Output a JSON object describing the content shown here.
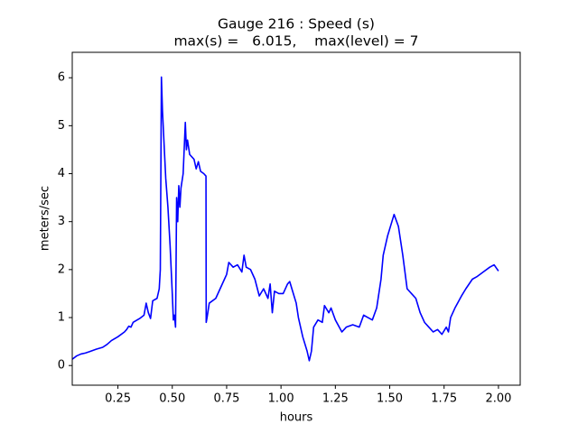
{
  "chart_data": {
    "type": "line",
    "title": [
      "Gauge 216 : Speed (s)",
      "max(s) =   6.015,    max(level) = 7"
    ],
    "xlabel": "hours",
    "ylabel": "meters/sec",
    "xlim": [
      0.04,
      2.1
    ],
    "ylim": [
      -0.41,
      6.53
    ],
    "xticks": [
      0.25,
      {
        "value": 0.5,
        "label": "0.50"
      },
      0.75,
      {
        "value": 1,
        "label": "1.00"
      },
      1.25,
      {
        "value": 1.5,
        "label": "1.50"
      },
      1.75,
      {
        "value": 2,
        "label": "2.00"
      }
    ],
    "yticks": [
      0,
      1,
      2,
      3,
      4,
      5,
      6
    ],
    "grid": false,
    "series": [
      {
        "color": "#0000ff",
        "x": [
          0.04,
          0.06,
          0.08,
          0.1,
          0.12,
          0.15,
          0.18,
          0.2,
          0.22,
          0.25,
          0.28,
          0.29,
          0.3,
          0.31,
          0.32,
          0.35,
          0.37,
          0.38,
          0.39,
          0.4,
          0.41,
          0.43,
          0.44,
          0.445,
          0.45,
          0.455,
          0.47,
          0.48,
          0.49,
          0.5,
          0.505,
          0.51,
          0.515,
          0.52,
          0.525,
          0.53,
          0.535,
          0.54,
          0.55,
          0.56,
          0.565,
          0.57,
          0.58,
          0.6,
          0.61,
          0.62,
          0.63,
          0.645,
          0.655,
          0.656,
          0.66,
          0.67,
          0.7,
          0.72,
          0.74,
          0.75,
          0.76,
          0.78,
          0.8,
          0.82,
          0.83,
          0.84,
          0.86,
          0.88,
          0.9,
          0.92,
          0.94,
          0.95,
          0.96,
          0.97,
          0.99,
          1.01,
          1.03,
          1.04,
          1.05,
          1.07,
          1.08,
          1.1,
          1.12,
          1.13,
          1.14,
          1.15,
          1.17,
          1.19,
          1.2,
          1.22,
          1.23,
          1.25,
          1.28,
          1.3,
          1.33,
          1.36,
          1.38,
          1.4,
          1.42,
          1.44,
          1.46,
          1.47,
          1.49,
          1.51,
          1.52,
          1.54,
          1.56,
          1.58,
          1.6,
          1.62,
          1.64,
          1.66,
          1.68,
          1.7,
          1.72,
          1.74,
          1.76,
          1.77,
          1.78,
          1.8,
          1.83,
          1.85,
          1.88,
          1.9,
          1.93,
          1.96,
          1.98,
          2.0
        ],
        "values": [
          0.13,
          0.2,
          0.24,
          0.26,
          0.29,
          0.34,
          0.38,
          0.44,
          0.52,
          0.6,
          0.7,
          0.75,
          0.82,
          0.8,
          0.9,
          0.98,
          1.05,
          1.3,
          1.1,
          0.98,
          1.35,
          1.4,
          1.6,
          2.0,
          6.015,
          5.3,
          3.9,
          3.3,
          2.5,
          1.5,
          0.95,
          1.05,
          0.8,
          3.5,
          3.0,
          3.75,
          3.3,
          3.7,
          4.0,
          5.07,
          4.5,
          4.7,
          4.4,
          4.3,
          4.1,
          4.25,
          4.05,
          4.0,
          3.95,
          0.9,
          1.0,
          1.3,
          1.4,
          1.6,
          1.8,
          1.9,
          2.15,
          2.05,
          2.1,
          1.95,
          2.3,
          2.05,
          2.0,
          1.8,
          1.45,
          1.6,
          1.4,
          1.7,
          1.1,
          1.55,
          1.5,
          1.5,
          1.7,
          1.75,
          1.6,
          1.3,
          1.0,
          0.6,
          0.3,
          0.1,
          0.3,
          0.8,
          0.95,
          0.9,
          1.25,
          1.1,
          1.2,
          0.95,
          0.7,
          0.8,
          0.85,
          0.8,
          1.05,
          1.0,
          0.95,
          1.2,
          1.8,
          2.3,
          2.7,
          3.0,
          3.15,
          2.9,
          2.3,
          1.6,
          1.5,
          1.4,
          1.1,
          0.9,
          0.8,
          0.7,
          0.75,
          0.65,
          0.8,
          0.7,
          1.0,
          1.2,
          1.45,
          1.6,
          1.8,
          1.85,
          1.95,
          2.05,
          2.1,
          1.97
        ]
      }
    ]
  }
}
